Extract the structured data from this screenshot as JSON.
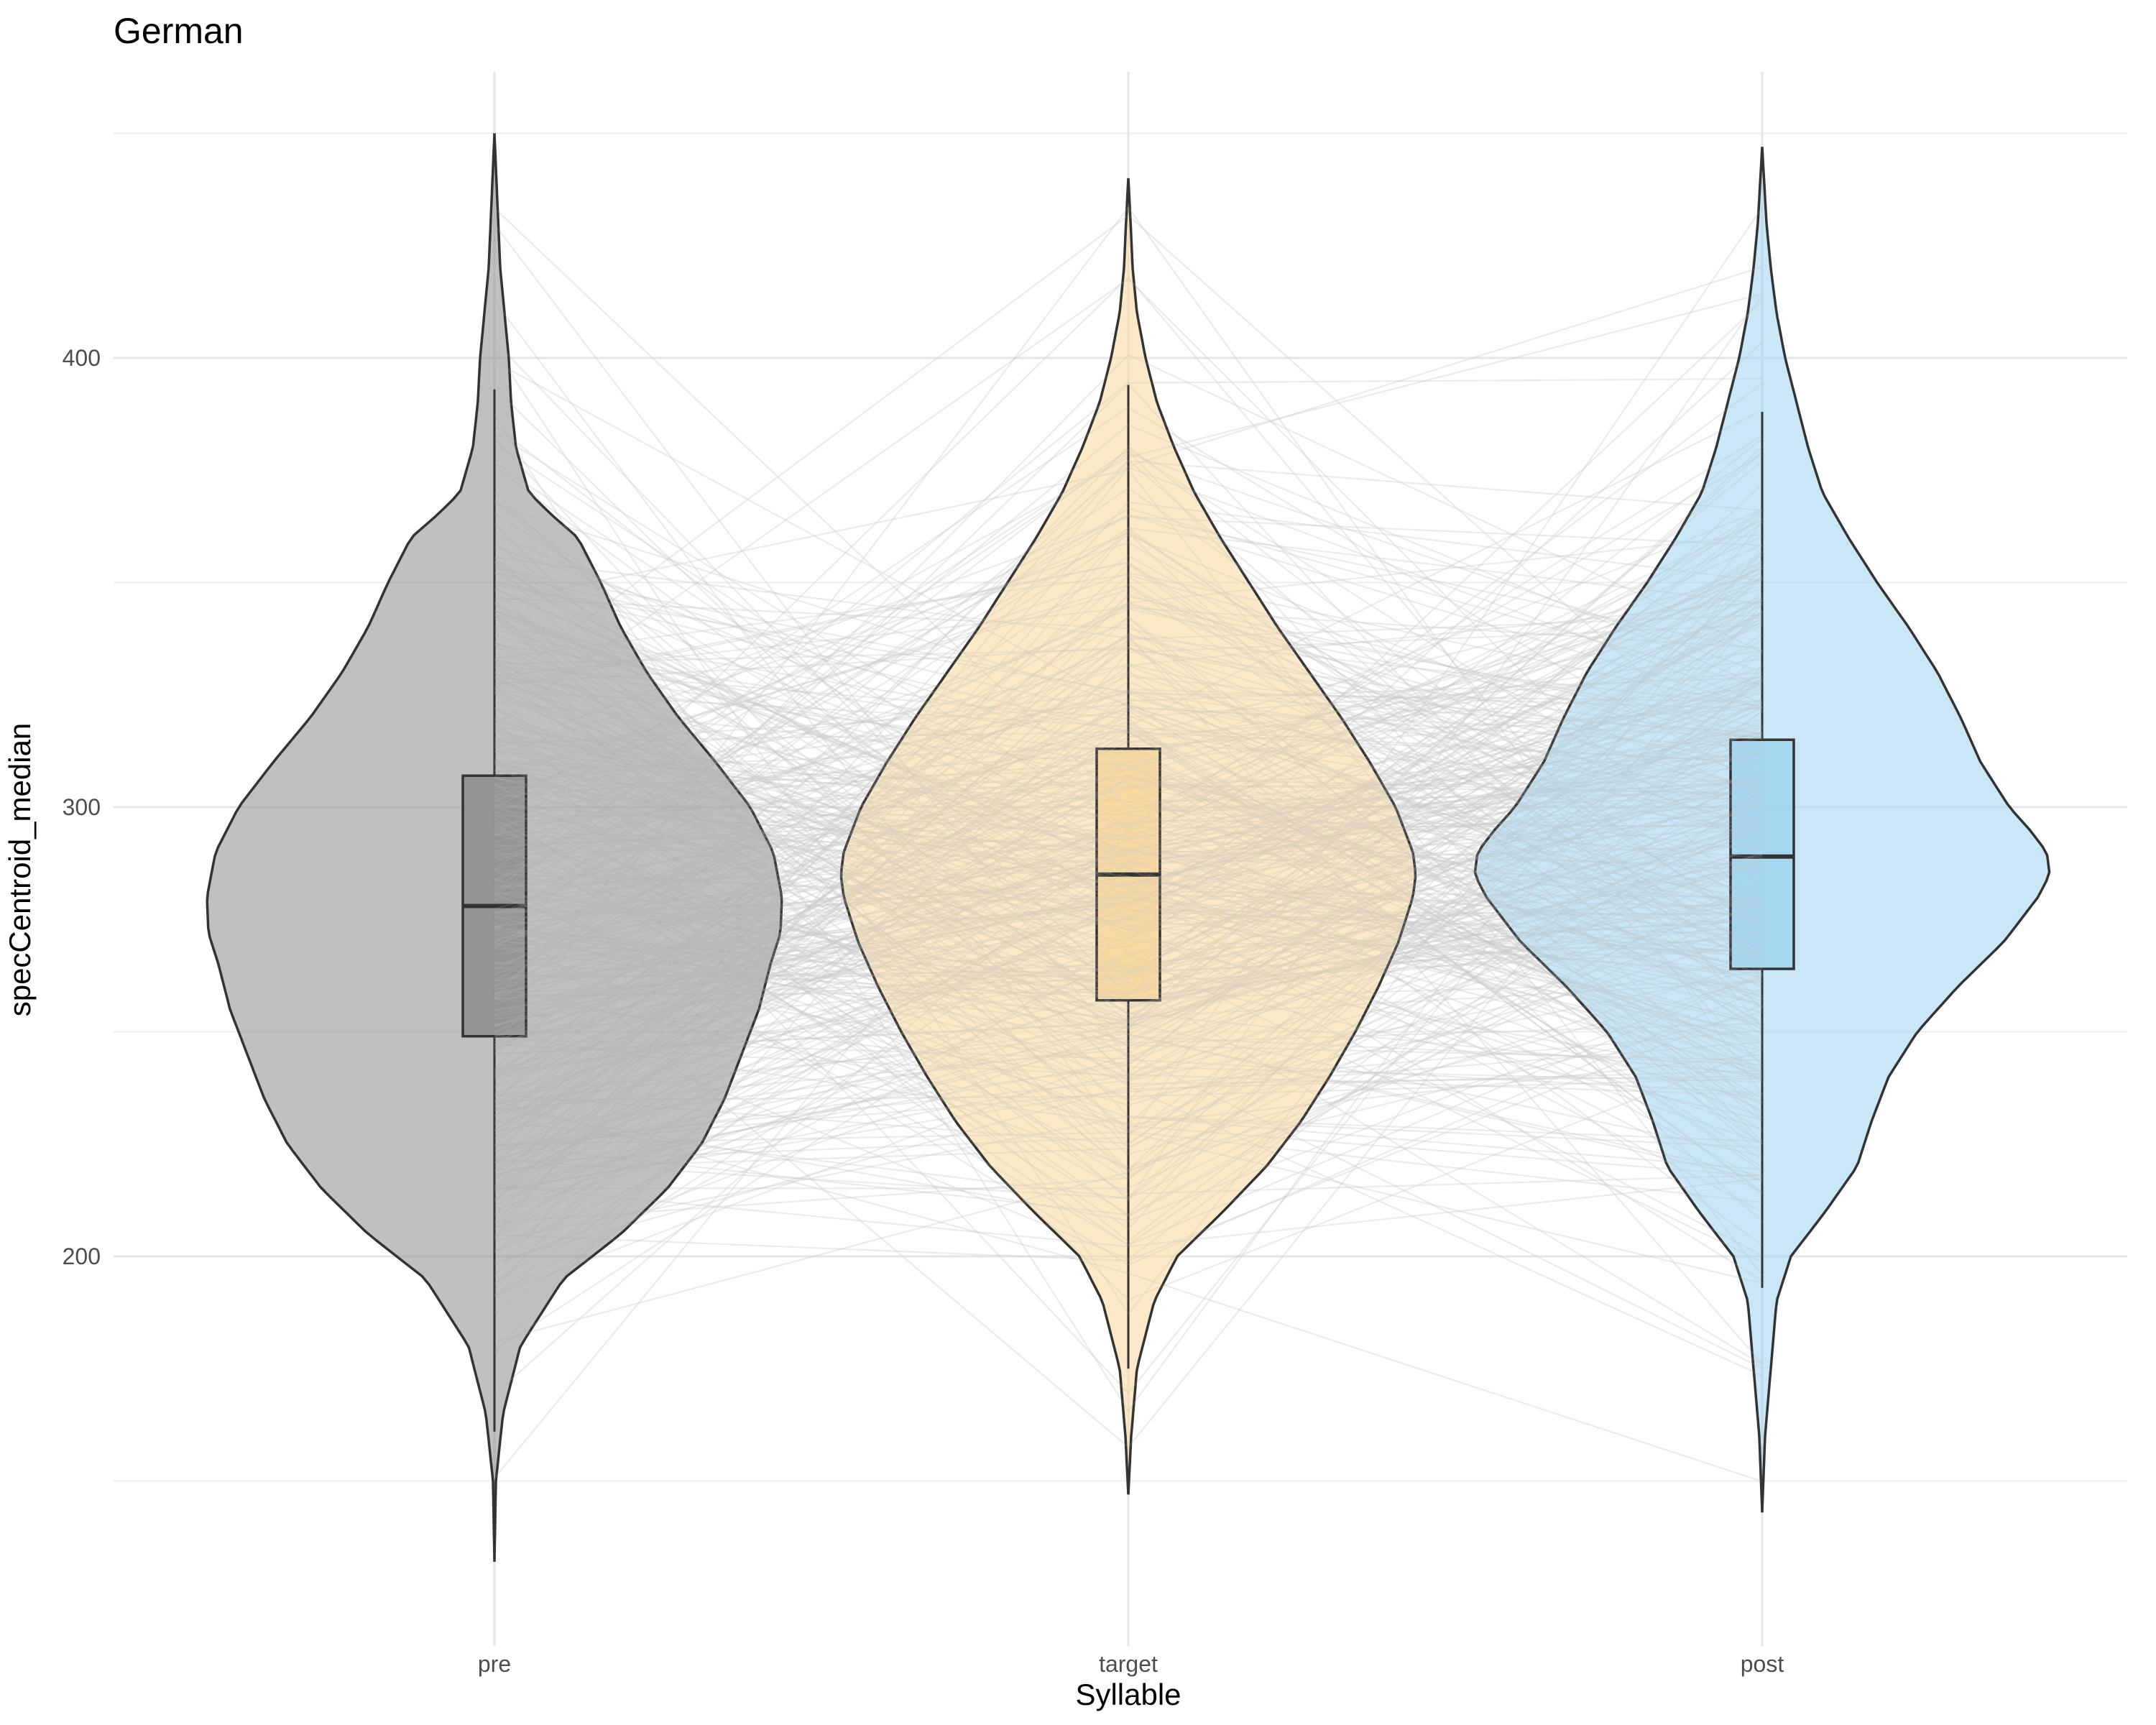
{
  "chart_data": {
    "type": "violin",
    "title": "German",
    "xlabel": "Syllable",
    "ylabel": "specCentroid_median",
    "categories": [
      "pre",
      "target",
      "post"
    ],
    "y_ticks": [
      200,
      300,
      400
    ],
    "ylim": [
      125,
      462
    ],
    "grid": true,
    "legend": "none",
    "colors": {
      "pre": "#8c8c8c",
      "target": "#f8d79a",
      "post": "#9fd3f0",
      "lines": "#c8c8c8",
      "outline": "#333333"
    },
    "series": [
      {
        "category": "pre",
        "min": 132,
        "max": 450,
        "q1": 249,
        "median": 278,
        "q3": 307,
        "whisker_low": 161,
        "whisker_high": 393,
        "density": [
          [
            132,
            0.0
          ],
          [
            150,
            0.005
          ],
          [
            165,
            0.03
          ],
          [
            180,
            0.09
          ],
          [
            195,
            0.24
          ],
          [
            205,
            0.44
          ],
          [
            215,
            0.6
          ],
          [
            225,
            0.72
          ],
          [
            235,
            0.8
          ],
          [
            245,
            0.86
          ],
          [
            255,
            0.92
          ],
          [
            265,
            0.96
          ],
          [
            272,
            0.995
          ],
          [
            280,
            1.0
          ],
          [
            290,
            0.97
          ],
          [
            300,
            0.89
          ],
          [
            310,
            0.77
          ],
          [
            320,
            0.64
          ],
          [
            330,
            0.53
          ],
          [
            340,
            0.44
          ],
          [
            350,
            0.37
          ],
          [
            360,
            0.29
          ],
          [
            365,
            0.2
          ],
          [
            370,
            0.12
          ],
          [
            380,
            0.075
          ],
          [
            390,
            0.058
          ],
          [
            400,
            0.05
          ],
          [
            410,
            0.035
          ],
          [
            420,
            0.02
          ],
          [
            435,
            0.01
          ],
          [
            450,
            0.0
          ]
        ]
      },
      {
        "category": "target",
        "min": 147,
        "max": 440,
        "q1": 257,
        "median": 285,
        "q3": 313,
        "whisker_low": 175,
        "whisker_high": 394,
        "density": [
          [
            147,
            0.0
          ],
          [
            160,
            0.01
          ],
          [
            175,
            0.03
          ],
          [
            190,
            0.09
          ],
          [
            200,
            0.17
          ],
          [
            210,
            0.33
          ],
          [
            220,
            0.48
          ],
          [
            230,
            0.6
          ],
          [
            240,
            0.7
          ],
          [
            250,
            0.79
          ],
          [
            260,
            0.87
          ],
          [
            270,
            0.94
          ],
          [
            280,
            0.99
          ],
          [
            285,
            1.0
          ],
          [
            290,
            0.99
          ],
          [
            300,
            0.93
          ],
          [
            310,
            0.84
          ],
          [
            320,
            0.74
          ],
          [
            330,
            0.63
          ],
          [
            340,
            0.52
          ],
          [
            350,
            0.42
          ],
          [
            360,
            0.32
          ],
          [
            370,
            0.23
          ],
          [
            380,
            0.16
          ],
          [
            390,
            0.1
          ],
          [
            400,
            0.06
          ],
          [
            410,
            0.03
          ],
          [
            420,
            0.015
          ],
          [
            430,
            0.008
          ],
          [
            440,
            0.0
          ]
        ]
      },
      {
        "category": "post",
        "min": 143,
        "max": 447,
        "q1": 264,
        "median": 289,
        "q3": 315,
        "whisker_low": 193,
        "whisker_high": 388,
        "density": [
          [
            143,
            0.0
          ],
          [
            160,
            0.01
          ],
          [
            175,
            0.03
          ],
          [
            190,
            0.05
          ],
          [
            200,
            0.1
          ],
          [
            210,
            0.22
          ],
          [
            220,
            0.33
          ],
          [
            230,
            0.38
          ],
          [
            240,
            0.44
          ],
          [
            250,
            0.54
          ],
          [
            260,
            0.68
          ],
          [
            270,
            0.84
          ],
          [
            280,
            0.96
          ],
          [
            285,
            1.0
          ],
          [
            290,
            0.99
          ],
          [
            295,
            0.93
          ],
          [
            300,
            0.86
          ],
          [
            310,
            0.76
          ],
          [
            320,
            0.69
          ],
          [
            330,
            0.61
          ],
          [
            340,
            0.51
          ],
          [
            350,
            0.4
          ],
          [
            360,
            0.3
          ],
          [
            370,
            0.21
          ],
          [
            380,
            0.16
          ],
          [
            390,
            0.12
          ],
          [
            400,
            0.08
          ],
          [
            410,
            0.05
          ],
          [
            420,
            0.03
          ],
          [
            430,
            0.015
          ],
          [
            447,
            0.0
          ]
        ]
      }
    ]
  }
}
